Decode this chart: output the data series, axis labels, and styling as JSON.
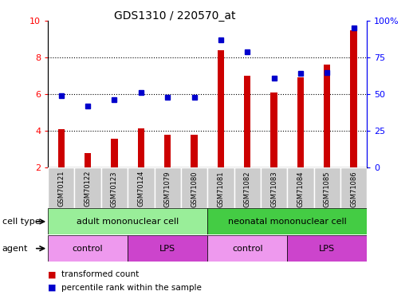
{
  "title": "GDS1310 / 220570_at",
  "samples": [
    "GSM70121",
    "GSM70122",
    "GSM70123",
    "GSM70124",
    "GSM71079",
    "GSM71080",
    "GSM71081",
    "GSM71082",
    "GSM71083",
    "GSM71084",
    "GSM71085",
    "GSM71086"
  ],
  "transformed_count": [
    4.1,
    2.8,
    3.55,
    4.15,
    3.8,
    3.8,
    8.4,
    7.0,
    6.1,
    6.9,
    7.6,
    9.5
  ],
  "percentile_rank": [
    49,
    42,
    46,
    51,
    48,
    48,
    87,
    79,
    61,
    64,
    65,
    95
  ],
  "bar_bottom": 2.0,
  "ylim_left": [
    2,
    10
  ],
  "ylim_right": [
    0,
    100
  ],
  "yticks_left": [
    2,
    4,
    6,
    8,
    10
  ],
  "yticks_right": [
    0,
    25,
    50,
    75,
    100
  ],
  "ytick_labels_right": [
    "0",
    "25",
    "50",
    "75",
    "100%"
  ],
  "bar_color": "#cc0000",
  "dot_color": "#0000cc",
  "cell_type_groups": [
    {
      "label": "adult mononuclear cell",
      "start": 0,
      "end": 6,
      "color": "#99ee99"
    },
    {
      "label": "neonatal mononuclear cell",
      "start": 6,
      "end": 12,
      "color": "#44cc44"
    }
  ],
  "agent_groups": [
    {
      "label": "control",
      "start": 0,
      "end": 3,
      "color": "#ee99ee"
    },
    {
      "label": "LPS",
      "start": 3,
      "end": 6,
      "color": "#cc44cc"
    },
    {
      "label": "control",
      "start": 6,
      "end": 9,
      "color": "#ee99ee"
    },
    {
      "label": "LPS",
      "start": 9,
      "end": 12,
      "color": "#cc44cc"
    }
  ],
  "legend_bar_color": "#cc0000",
  "legend_dot_color": "#0000cc",
  "bg_color": "#ffffff",
  "sample_bg_color": "#cccccc",
  "grid_yticks": [
    4,
    6,
    8
  ]
}
